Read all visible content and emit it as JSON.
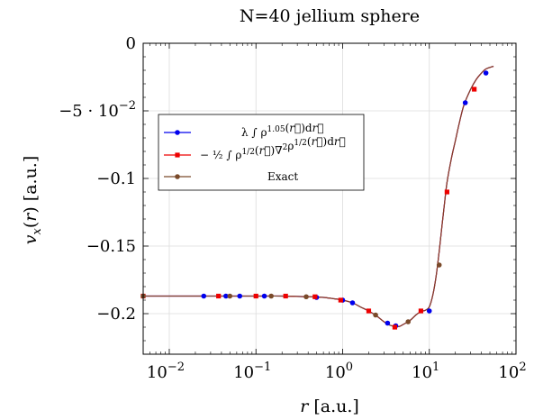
{
  "chart_data": {
    "type": "line",
    "title": "N=40 jellium sphere",
    "xlabel": "r [a.u.]",
    "ylabel": "v_x(r) [a.u.]",
    "xscale": "log",
    "xlim": [
      0.005,
      100
    ],
    "ylim": [
      -0.23,
      0
    ],
    "grid": true,
    "legend_placement": "upper-left",
    "x_ticks": [
      {
        "value": 0.01,
        "base": "10",
        "exp": "−2"
      },
      {
        "value": 0.1,
        "base": "10",
        "exp": "−1"
      },
      {
        "value": 1,
        "base": "10",
        "exp": "0"
      },
      {
        "value": 10,
        "base": "10",
        "exp": "1"
      },
      {
        "value": 100,
        "base": "10",
        "exp": "2"
      }
    ],
    "y_ticks": [
      {
        "value": 0,
        "label": "0"
      },
      {
        "value": -0.05,
        "label": "−5 · 10",
        "exp": "−2"
      },
      {
        "value": -0.1,
        "label": "−0.1"
      },
      {
        "value": -0.15,
        "label": "−0.15"
      },
      {
        "value": -0.2,
        "label": "−0.2"
      }
    ],
    "curve": {
      "x": [
        0.005,
        0.03,
        0.1,
        0.2,
        0.4,
        0.6,
        0.8,
        1.0,
        1.3,
        1.6,
        2.0,
        2.5,
        3.0,
        3.5,
        4.0,
        4.5,
        5.0,
        6.0,
        7.0,
        8.0,
        9.0,
        10.0,
        11.0,
        12.0,
        13.0,
        14.0,
        15.0,
        16.0,
        18.0,
        20.0,
        22.0,
        25.0,
        30.0,
        35.0,
        40.0,
        45.0,
        55.0
      ],
      "y": [
        -0.187,
        -0.187,
        -0.187,
        -0.187,
        -0.1875,
        -0.188,
        -0.189,
        -0.19,
        -0.192,
        -0.195,
        -0.198,
        -0.202,
        -0.206,
        -0.2085,
        -0.2095,
        -0.2095,
        -0.208,
        -0.205,
        -0.201,
        -0.1985,
        -0.1975,
        -0.195,
        -0.186,
        -0.172,
        -0.154,
        -0.135,
        -0.118,
        -0.103,
        -0.085,
        -0.072,
        -0.06,
        -0.046,
        -0.034,
        -0.0265,
        -0.022,
        -0.019,
        -0.017
      ]
    },
    "series": [
      {
        "name": "λ∫ρ^1.05(r)dr",
        "color": "#0000ee",
        "marker": "circle",
        "x": [
          0.025,
          0.045,
          0.065,
          0.125,
          0.5,
          1.0,
          1.3,
          3.3,
          4.1,
          10.0,
          26.0,
          45.0
        ],
        "y": [
          -0.187,
          -0.187,
          -0.187,
          -0.187,
          -0.188,
          -0.19,
          -0.192,
          -0.207,
          -0.209,
          -0.198,
          -0.044,
          -0.022
        ]
      },
      {
        "name": "−½∫ρ^½(r)∇²ρ^½(r)dr",
        "color": "#ee0000",
        "marker": "square",
        "x": [
          0.005,
          0.037,
          0.1,
          0.22,
          0.48,
          0.95,
          2.0,
          4.0,
          8.0,
          16.0,
          33.0
        ],
        "y": [
          -0.187,
          -0.187,
          -0.187,
          -0.187,
          -0.1875,
          -0.19,
          -0.198,
          -0.21,
          -0.198,
          -0.11,
          -0.034
        ]
      },
      {
        "name": "Exact",
        "color": "#7a4a2a",
        "marker": "circle",
        "x": [
          0.005,
          0.05,
          0.15,
          0.38,
          2.4,
          5.7,
          13.0
        ],
        "y": [
          -0.187,
          -0.187,
          -0.187,
          -0.1875,
          -0.201,
          -0.206,
          -0.164
        ]
      }
    ]
  }
}
